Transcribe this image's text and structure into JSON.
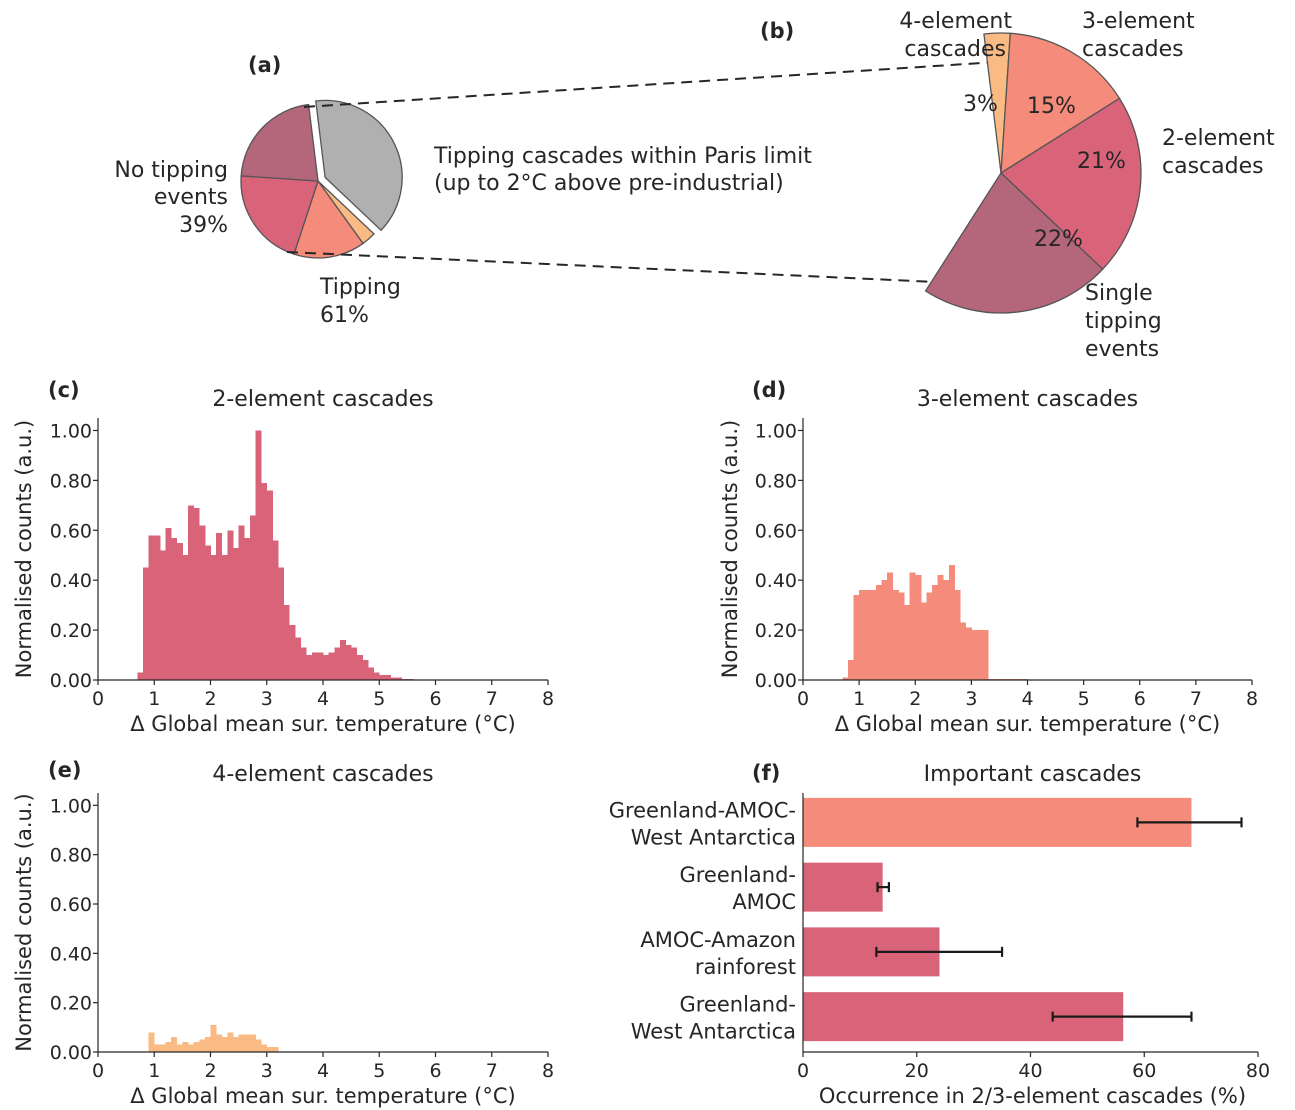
{
  "colors": {
    "no_tipping": "#b0b0b0",
    "tipping": "#b4667b",
    "two_element": "#d9647a",
    "three_element": "#f58b7a",
    "four_element": "#f9bb83",
    "pie_edge": "#555555",
    "text": "#262626"
  },
  "text": {
    "label_a": "(a)",
    "label_b": "(b)",
    "label_c": "(c)",
    "label_d": "(d)",
    "label_e": "(e)",
    "label_f": "(f)",
    "paris_line1": "Tipping cascades within Paris limit",
    "paris_line2": "(up to 2°C above pre-industrial)",
    "no_tipping_line1": "No tipping",
    "no_tipping_line2": "events",
    "no_tipping_pct": "39%",
    "tipping_line1": "Tipping",
    "tipping_pct": "61%",
    "four_el_line1": "4-element",
    "four_el_line2": "cascades",
    "three_el_line1": "3-element",
    "three_el_line2": "cascades",
    "two_el_line1": "2-element",
    "two_el_line2": "cascades",
    "single_line1": "Single",
    "single_line2": "tipping",
    "single_line3": "events",
    "pct_four": "3%",
    "pct_three": "15%",
    "pct_two": "21%",
    "pct_single": "22%"
  },
  "chart_data": [
    {
      "id": "a",
      "type": "pie",
      "slices": [
        {
          "label": "No tipping events",
          "value": 39
        },
        {
          "label": "Tipping",
          "value": 61,
          "exploded": true
        }
      ]
    },
    {
      "id": "b",
      "type": "pie",
      "slices": [
        {
          "label": "4-element cascades",
          "value": 3
        },
        {
          "label": "3-element cascades",
          "value": 15
        },
        {
          "label": "2-element cascades",
          "value": 21
        },
        {
          "label": "Single tipping events",
          "value": 22
        }
      ]
    },
    {
      "id": "c",
      "type": "bar",
      "title": "2-element cascades",
      "xlabel": "Δ Global mean sur. temperature (°C)",
      "ylabel": "Normalised counts (a.u.)",
      "xlim": [
        0,
        8
      ],
      "ylim": [
        0,
        1.05
      ],
      "xticks": [
        "0",
        "1",
        "2",
        "3",
        "4",
        "5",
        "6",
        "7",
        "8"
      ],
      "yticks": [
        "0.00",
        "0.20",
        "0.40",
        "0.60",
        "0.80",
        "1.00"
      ],
      "bin_start": 0.7,
      "bin_width": 0.1,
      "values": [
        0.03,
        0.45,
        0.58,
        0.58,
        0.52,
        0.61,
        0.57,
        0.55,
        0.5,
        0.7,
        0.69,
        0.62,
        0.54,
        0.5,
        0.59,
        0.5,
        0.6,
        0.53,
        0.62,
        0.57,
        0.66,
        1.0,
        0.79,
        0.76,
        0.56,
        0.45,
        0.3,
        0.22,
        0.17,
        0.13,
        0.1,
        0.11,
        0.11,
        0.1,
        0.11,
        0.13,
        0.16,
        0.14,
        0.13,
        0.1,
        0.08,
        0.05,
        0.03,
        0.02,
        0.02,
        0.01,
        0.01,
        0.005,
        0.005
      ]
    },
    {
      "id": "d",
      "type": "bar",
      "title": "3-element cascades",
      "xlabel": "Δ Global mean sur. temperature (°C)",
      "ylabel": "Normalised counts (a.u.)",
      "xlim": [
        0,
        8
      ],
      "ylim": [
        0,
        1.05
      ],
      "xticks": [
        "0",
        "1",
        "2",
        "3",
        "4",
        "5",
        "6",
        "7",
        "8"
      ],
      "yticks": [
        "0.00",
        "0.20",
        "0.40",
        "0.60",
        "0.80",
        "1.00"
      ],
      "bin_start": 0.7,
      "bin_width": 0.1,
      "values": [
        0.01,
        0.08,
        0.34,
        0.36,
        0.36,
        0.36,
        0.38,
        0.4,
        0.43,
        0.36,
        0.35,
        0.3,
        0.43,
        0.42,
        0.31,
        0.35,
        0.38,
        0.42,
        0.4,
        0.46,
        0.36,
        0.23,
        0.21,
        0.2,
        0.2,
        0.2,
        0.005,
        0.005,
        0.005,
        0.005,
        0.005,
        0.005,
        0.005
      ]
    },
    {
      "id": "e",
      "type": "bar",
      "title": "4-element cascades",
      "xlabel": "Δ Global mean sur. temperature (°C)",
      "ylabel": "Normalised counts (a.u.)",
      "xlim": [
        0,
        8
      ],
      "ylim": [
        0,
        1.05
      ],
      "xticks": [
        "0",
        "1",
        "2",
        "3",
        "4",
        "5",
        "6",
        "7",
        "8"
      ],
      "yticks": [
        "0.00",
        "0.20",
        "0.40",
        "0.60",
        "0.80",
        "1.00"
      ],
      "bin_start": 0.9,
      "bin_width": 0.1,
      "values": [
        0.08,
        0.03,
        0.03,
        0.04,
        0.06,
        0.03,
        0.04,
        0.03,
        0.04,
        0.05,
        0.06,
        0.11,
        0.07,
        0.06,
        0.08,
        0.06,
        0.07,
        0.07,
        0.07,
        0.05,
        0.03,
        0.02,
        0.02
      ]
    },
    {
      "id": "f",
      "type": "bar",
      "orientation": "horizontal",
      "title": "Important cascades",
      "xlabel": "Occurrence in 2/3-element cascades (%)",
      "xlim": [
        0,
        80
      ],
      "xticks": [
        "0",
        "20",
        "40",
        "60",
        "80"
      ],
      "categories": [
        {
          "line1": "Greenland-AMOC-",
          "line2": "West Antarctica"
        },
        {
          "line1": "Greenland-",
          "line2": "AMOC"
        },
        {
          "line1": "AMOC-Amazon",
          "line2": "rainforest"
        },
        {
          "line1": "Greenland-",
          "line2": "West Antarctica"
        }
      ],
      "values": [
        68.3,
        14.0,
        24.0,
        56.3
      ],
      "error_low": [
        58.8,
        13.1,
        12.9,
        43.9
      ],
      "error_high": [
        77.1,
        15.1,
        35.0,
        68.3
      ],
      "bar_colors": [
        "#f58b7a",
        "#d9647a",
        "#d9647a",
        "#d9647a"
      ]
    }
  ]
}
